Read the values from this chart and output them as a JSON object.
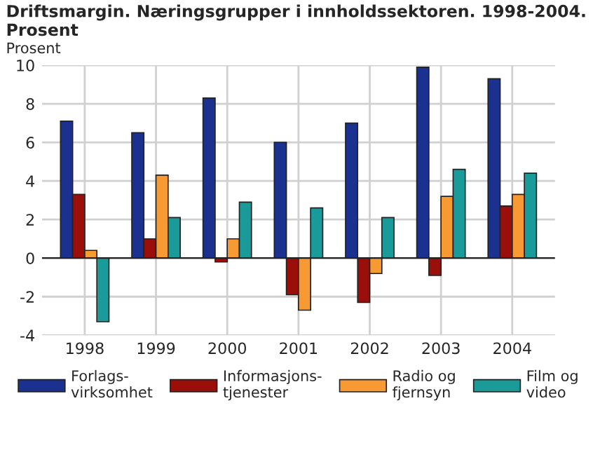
{
  "chart_data": {
    "type": "bar",
    "title": "Driftsmargin. Næringsgrupper i innholdssektoren. 1998-2004.\nProsent",
    "ylabel": "Prosent",
    "categories": [
      "1998",
      "1999",
      "2000",
      "2001",
      "2002",
      "2003",
      "2004"
    ],
    "series": [
      {
        "name": "Forlags-\nvirksomhet",
        "color": "#1a318f",
        "values": [
          7.1,
          6.5,
          8.3,
          6.0,
          7.0,
          9.9,
          9.3
        ]
      },
      {
        "name": "Informasjons-\ntjenester",
        "color": "#9a0f0a",
        "values": [
          3.3,
          1.0,
          -0.2,
          -1.9,
          -2.3,
          -0.9,
          2.7
        ]
      },
      {
        "name": "Radio og\nfjernsyn",
        "color": "#f89a34",
        "values": [
          0.4,
          4.3,
          1.0,
          -2.7,
          -0.8,
          3.2,
          3.3
        ]
      },
      {
        "name": "Film og\nvideo",
        "color": "#1a9a98",
        "values": [
          -3.3,
          2.1,
          2.9,
          2.6,
          2.1,
          4.6,
          4.4
        ]
      }
    ],
    "ylim": [
      -4,
      10
    ],
    "yticks": [
      -4,
      -2,
      0,
      2,
      4,
      6,
      8,
      10
    ],
    "grid": true,
    "legend": "bottom"
  }
}
